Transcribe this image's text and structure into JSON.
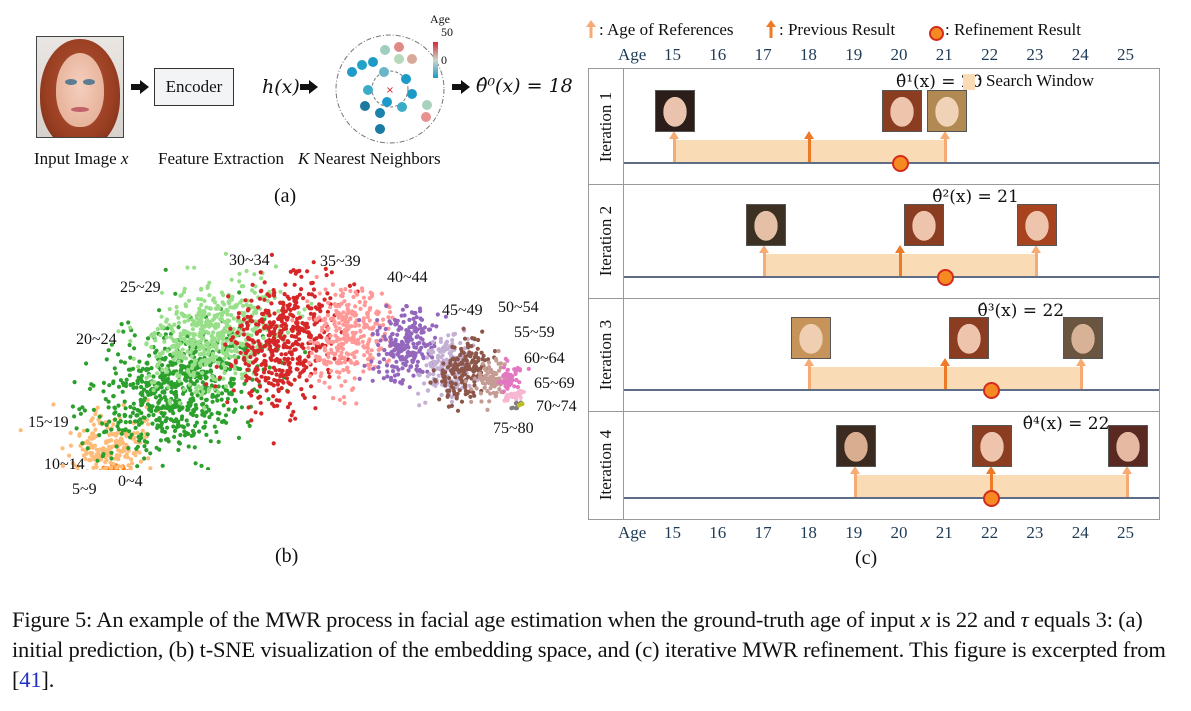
{
  "figure": {
    "number": "Figure 5",
    "caption_prefix": "Figure 5:",
    "caption_part1": "An example of the MWR process in facial age estimation when the ground-truth age of input",
    "caption_var_x": "x",
    "caption_part2": "is 22 and",
    "caption_var_tau": "τ",
    "caption_part3": "equals 3: (a) initial prediction, (b) t-SNE visualization of the embedding space, and (c) iterative MWR refinement. This figure is excerpted from",
    "caption_ref_open": "[",
    "caption_ref": "41",
    "caption_ref_close": "]."
  },
  "panel_a": {
    "sublabel": "(a)",
    "input_label": "Input Image",
    "input_var": "x",
    "encoder_label": "Encoder",
    "feature_symbol": "h(x)",
    "feature_label": "Feature Extraction",
    "knn_label_var": "K",
    "knn_label": "Nearest Neighbors",
    "colorbar_title": "Age",
    "colorbar_max": "50",
    "colorbar_min": "0",
    "prediction": "θ̂⁰(x)  = 18",
    "query_marker": "×"
  },
  "panel_b": {
    "sublabel": "(b)",
    "cluster_labels": [
      "0~4",
      "5~9",
      "10~14",
      "15~19",
      "20~24",
      "25~29",
      "30~34",
      "35~39",
      "40~44",
      "45~49",
      "50~54",
      "55~59",
      "60~64",
      "65~69",
      "70~74",
      "75~80"
    ],
    "cluster_colors": {
      "0~4": "#1f77b4",
      "5~9": "#aec7e8",
      "10~14": "#ff7f0e",
      "15~19": "#ffbb78",
      "20~24": "#2ca02c",
      "25~29": "#98df8a",
      "30~34": "#d62728",
      "35~39": "#ff9896",
      "40~44": "#9467bd",
      "45~49": "#c5b0d5",
      "50~54": "#8c564b",
      "55~59": "#c49c94",
      "60~64": "#e377c2",
      "65~69": "#f7b6d2",
      "70~74": "#7f7f7f",
      "75~80": "#bcbd22"
    }
  },
  "panel_c": {
    "sublabel": "(c)",
    "legend": {
      "references": ": Age of References",
      "previous": ": Previous Result",
      "refinement": ": Refinement Result",
      "search_window": ": Search Window"
    },
    "axis_title": "Age",
    "ages": [
      "15",
      "16",
      "17",
      "18",
      "19",
      "20",
      "21",
      "22",
      "23",
      "24",
      "25"
    ],
    "colors": {
      "reference": "#f7ab74",
      "previous": "#ee7a27",
      "window": "#f9dcb5",
      "dot_fill": "#f58a22",
      "dot_stroke": "#d52a1e",
      "baseline": "#5e6c86"
    },
    "iterations": [
      {
        "label": "Iteration 1",
        "estimate": "θ̂¹(x)  = 20",
        "lower_ref": 15,
        "upper_ref": 21,
        "previous": 18,
        "result": 20,
        "faces_at": [
          15,
          20,
          21
        ]
      },
      {
        "label": "Iteration 2",
        "estimate": "θ̂²(x)  = 21",
        "lower_ref": 17,
        "upper_ref": 23,
        "previous": 20,
        "result": 21,
        "faces_at": [
          17,
          20.5,
          23
        ]
      },
      {
        "label": "Iteration 3",
        "estimate": "θ̂³(x)  = 22",
        "lower_ref": 18,
        "upper_ref": 24,
        "previous": 21,
        "result": 22,
        "faces_at": [
          18,
          21.5,
          24
        ]
      },
      {
        "label": "Iteration 4",
        "estimate": "θ̂⁴(x)  = 22",
        "lower_ref": 19,
        "upper_ref": 25,
        "previous": 22,
        "result": 22,
        "faces_at": [
          19,
          22,
          25
        ]
      }
    ]
  }
}
